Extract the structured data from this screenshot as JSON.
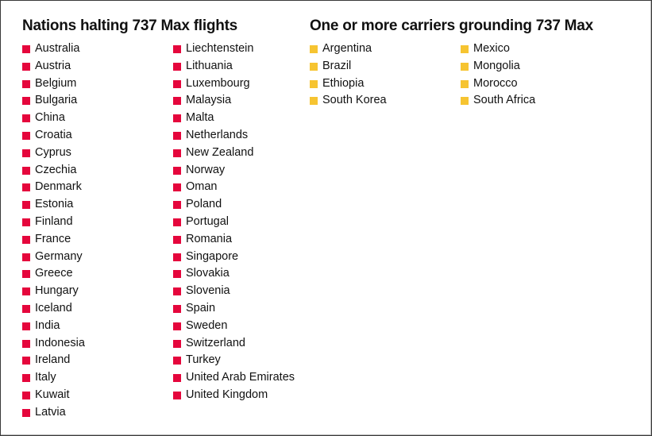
{
  "sections": [
    {
      "title": "Nations halting 737 Max flights",
      "marker_color": "#E5063C",
      "columns": [
        [
          "Australia",
          "Austria",
          "Belgium",
          "Bulgaria",
          "China",
          "Croatia",
          "Cyprus",
          "Czechia",
          "Denmark",
          "Estonia",
          "Finland",
          "France",
          "Germany",
          "Greece",
          "Hungary",
          "Iceland",
          "India",
          "Indonesia",
          "Ireland",
          "Italy",
          "Kuwait",
          "Latvia"
        ],
        [
          "Liechtenstein",
          "Lithuania",
          "Luxembourg",
          "Malaysia",
          "Malta",
          "Netherlands",
          "New Zealand",
          "Norway",
          "Oman",
          "Poland",
          "Portugal",
          "Romania",
          "Singapore",
          "Slovakia",
          "Slovenia",
          "Spain",
          "Sweden",
          "Switzerland",
          "Turkey",
          "United Arab Emirates",
          "United Kingdom"
        ]
      ]
    },
    {
      "title": "One or more carriers grounding 737 Max",
      "marker_color": "#F6C431",
      "columns": [
        [
          "Argentina",
          "Brazil",
          "Ethiopia",
          "South Korea"
        ],
        [
          "Mexico",
          "Mongolia",
          "Morocco",
          "South Africa"
        ]
      ]
    }
  ]
}
